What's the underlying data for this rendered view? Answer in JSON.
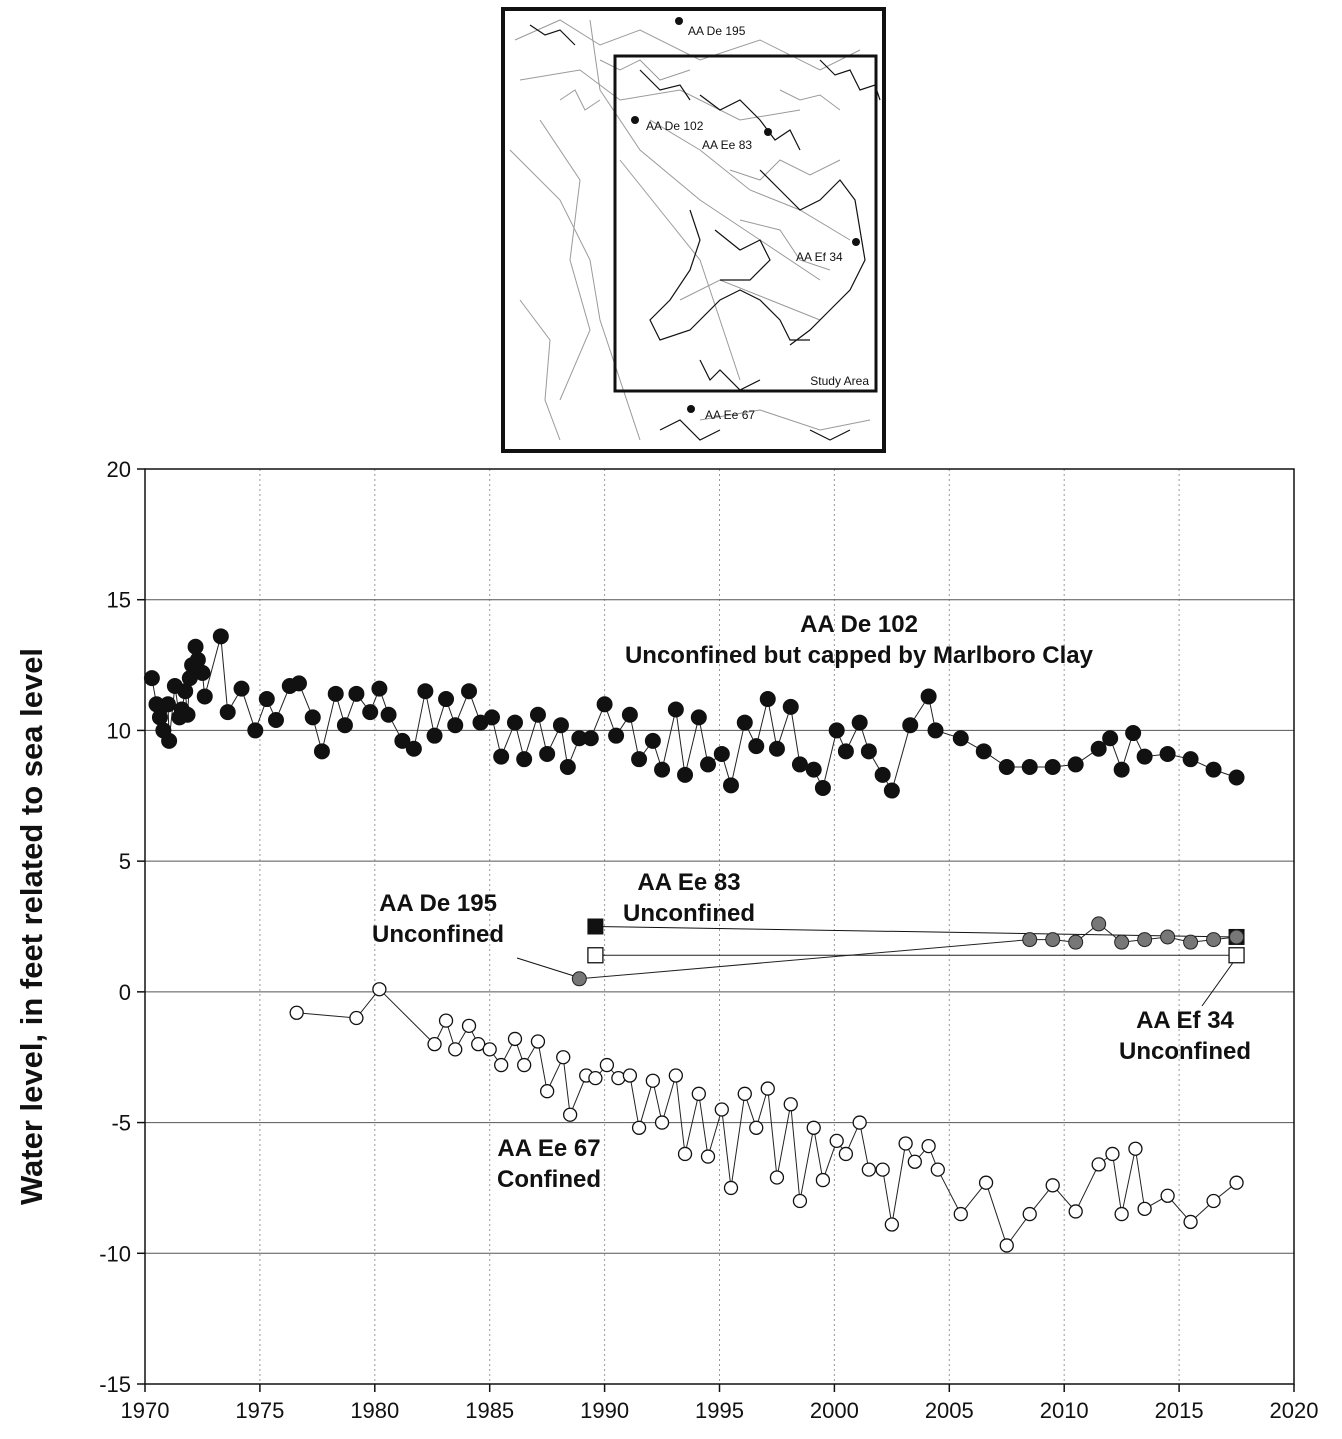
{
  "map": {
    "wells": [
      {
        "id": "AA De 195"
      },
      {
        "id": "AA De 102"
      },
      {
        "id": "AA Ee 83"
      },
      {
        "id": "AA Ef 34"
      },
      {
        "id": "AA Ee 67"
      }
    ],
    "study_area_label": "Study Area"
  },
  "chart_data": {
    "type": "scatter",
    "title": "",
    "xlabel": "",
    "ylabel": "Water level, in feet related to sea level",
    "xlim": [
      1970,
      2020
    ],
    "ylim": [
      -15,
      20
    ],
    "xticks": [
      1970,
      1975,
      1980,
      1985,
      1990,
      1995,
      2000,
      2005,
      2010,
      2015,
      2020
    ],
    "yticks": [
      -15,
      -10,
      -5,
      0,
      5,
      10,
      15,
      20
    ],
    "grid": {
      "horizontal": "solid",
      "vertical": "dotted"
    },
    "series": [
      {
        "name": "AA De 102",
        "marker": "filled-circle",
        "color": "#111111",
        "points": [
          [
            1970.3,
            12.0
          ],
          [
            1970.5,
            11.0
          ],
          [
            1970.65,
            10.5
          ],
          [
            1970.8,
            10.0
          ],
          [
            1971.0,
            11.0
          ],
          [
            1971.05,
            9.6
          ],
          [
            1971.3,
            11.7
          ],
          [
            1971.5,
            10.5
          ],
          [
            1971.6,
            10.8
          ],
          [
            1971.75,
            11.5
          ],
          [
            1971.85,
            10.6
          ],
          [
            1971.95,
            12.0
          ],
          [
            1972.05,
            12.5
          ],
          [
            1972.2,
            13.2
          ],
          [
            1972.3,
            12.7
          ],
          [
            1972.5,
            12.2
          ],
          [
            1972.6,
            11.3
          ],
          [
            1973.3,
            13.6
          ],
          [
            1973.6,
            10.7
          ],
          [
            1974.2,
            11.6
          ],
          [
            1974.8,
            10.0
          ],
          [
            1975.3,
            11.2
          ],
          [
            1975.7,
            10.4
          ],
          [
            1976.3,
            11.7
          ],
          [
            1976.7,
            11.8
          ],
          [
            1977.3,
            10.5
          ],
          [
            1977.7,
            9.2
          ],
          [
            1978.3,
            11.4
          ],
          [
            1978.7,
            10.2
          ],
          [
            1979.2,
            11.4
          ],
          [
            1979.8,
            10.7
          ],
          [
            1980.2,
            11.6
          ],
          [
            1980.6,
            10.6
          ],
          [
            1981.2,
            9.6
          ],
          [
            1981.7,
            9.3
          ],
          [
            1982.2,
            11.5
          ],
          [
            1982.6,
            9.8
          ],
          [
            1983.1,
            11.2
          ],
          [
            1983.5,
            10.2
          ],
          [
            1984.1,
            11.5
          ],
          [
            1984.6,
            10.3
          ],
          [
            1985.1,
            10.5
          ],
          [
            1985.5,
            9.0
          ],
          [
            1986.1,
            10.3
          ],
          [
            1986.5,
            8.9
          ],
          [
            1987.1,
            10.6
          ],
          [
            1987.5,
            9.1
          ],
          [
            1988.1,
            10.2
          ],
          [
            1988.4,
            8.6
          ],
          [
            1988.9,
            9.7
          ],
          [
            1989.4,
            9.7
          ],
          [
            1990.0,
            11.0
          ],
          [
            1990.5,
            9.8
          ],
          [
            1991.1,
            10.6
          ],
          [
            1991.5,
            8.9
          ],
          [
            1992.1,
            9.6
          ],
          [
            1992.5,
            8.5
          ],
          [
            1993.1,
            10.8
          ],
          [
            1993.5,
            8.3
          ],
          [
            1994.1,
            10.5
          ],
          [
            1994.5,
            8.7
          ],
          [
            1995.1,
            9.1
          ],
          [
            1995.5,
            7.9
          ],
          [
            1996.1,
            10.3
          ],
          [
            1996.6,
            9.4
          ],
          [
            1997.1,
            11.2
          ],
          [
            1997.5,
            9.3
          ],
          [
            1998.1,
            10.9
          ],
          [
            1998.5,
            8.7
          ],
          [
            1999.1,
            8.5
          ],
          [
            1999.5,
            7.8
          ],
          [
            2000.1,
            10.0
          ],
          [
            2000.5,
            9.2
          ],
          [
            2001.1,
            10.3
          ],
          [
            2001.5,
            9.2
          ],
          [
            2002.1,
            8.3
          ],
          [
            2002.5,
            7.7
          ],
          [
            2003.3,
            10.2
          ],
          [
            2004.1,
            11.3
          ],
          [
            2004.4,
            10.0
          ],
          [
            2005.5,
            9.7
          ],
          [
            2006.5,
            9.2
          ],
          [
            2007.5,
            8.6
          ],
          [
            2008.5,
            8.6
          ],
          [
            2009.5,
            8.6
          ],
          [
            2010.5,
            8.7
          ],
          [
            2011.5,
            9.3
          ],
          [
            2012.0,
            9.7
          ],
          [
            2012.5,
            8.5
          ],
          [
            2013.0,
            9.9
          ],
          [
            2013.5,
            9.0
          ],
          [
            2014.5,
            9.1
          ],
          [
            2015.5,
            8.9
          ],
          [
            2016.5,
            8.5
          ],
          [
            2017.5,
            8.2
          ]
        ]
      },
      {
        "name": "AA Ee 67",
        "marker": "open-circle",
        "color": "#ffffff",
        "points": [
          [
            1976.6,
            -0.8
          ],
          [
            1979.2,
            -1.0
          ],
          [
            1980.2,
            0.1
          ],
          [
            1982.6,
            -2.0
          ],
          [
            1983.1,
            -1.1
          ],
          [
            1983.5,
            -2.2
          ],
          [
            1984.1,
            -1.3
          ],
          [
            1984.5,
            -2.0
          ],
          [
            1985.0,
            -2.2
          ],
          [
            1985.5,
            -2.8
          ],
          [
            1986.1,
            -1.8
          ],
          [
            1986.5,
            -2.8
          ],
          [
            1987.1,
            -1.9
          ],
          [
            1987.5,
            -3.8
          ],
          [
            1988.2,
            -2.5
          ],
          [
            1988.5,
            -4.7
          ],
          [
            1989.2,
            -3.2
          ],
          [
            1989.6,
            -3.3
          ],
          [
            1990.1,
            -2.8
          ],
          [
            1990.6,
            -3.3
          ],
          [
            1991.1,
            -3.2
          ],
          [
            1991.5,
            -5.2
          ],
          [
            1992.1,
            -3.4
          ],
          [
            1992.5,
            -5.0
          ],
          [
            1993.1,
            -3.2
          ],
          [
            1993.5,
            -6.2
          ],
          [
            1994.1,
            -3.9
          ],
          [
            1994.5,
            -6.3
          ],
          [
            1995.1,
            -4.5
          ],
          [
            1995.5,
            -7.5
          ],
          [
            1996.1,
            -3.9
          ],
          [
            1996.6,
            -5.2
          ],
          [
            1997.1,
            -3.7
          ],
          [
            1997.5,
            -7.1
          ],
          [
            1998.1,
            -4.3
          ],
          [
            1998.5,
            -8.0
          ],
          [
            1999.1,
            -5.2
          ],
          [
            1999.5,
            -7.2
          ],
          [
            2000.1,
            -5.7
          ],
          [
            2000.5,
            -6.2
          ],
          [
            2001.1,
            -5.0
          ],
          [
            2001.5,
            -6.8
          ],
          [
            2002.1,
            -6.8
          ],
          [
            2002.5,
            -8.9
          ],
          [
            2003.1,
            -5.8
          ],
          [
            2003.5,
            -6.5
          ],
          [
            2004.1,
            -5.9
          ],
          [
            2004.5,
            -6.8
          ],
          [
            2005.5,
            -8.5
          ],
          [
            2006.6,
            -7.3
          ],
          [
            2007.5,
            -9.7
          ],
          [
            2008.5,
            -8.5
          ],
          [
            2009.5,
            -7.4
          ],
          [
            2010.5,
            -8.4
          ],
          [
            2011.5,
            -6.6
          ],
          [
            2012.1,
            -6.2
          ],
          [
            2012.5,
            -8.5
          ],
          [
            2013.1,
            -6.0
          ],
          [
            2013.5,
            -8.3
          ],
          [
            2014.5,
            -7.8
          ],
          [
            2015.5,
            -8.8
          ],
          [
            2016.5,
            -8.0
          ],
          [
            2017.5,
            -7.3
          ]
        ]
      },
      {
        "name": "AA De 195",
        "marker": "gray-circle",
        "color": "#777777",
        "points": [
          [
            1988.9,
            0.5
          ],
          [
            2008.5,
            2.0
          ],
          [
            2009.5,
            2.0
          ],
          [
            2010.5,
            1.9
          ],
          [
            2011.5,
            2.6
          ],
          [
            2012.5,
            1.9
          ],
          [
            2013.5,
            2.0
          ],
          [
            2014.5,
            2.1
          ],
          [
            2015.5,
            1.9
          ],
          [
            2016.5,
            2.0
          ],
          [
            2017.5,
            2.1
          ]
        ]
      },
      {
        "name": "AA Ee 83",
        "marker": "filled-square",
        "color": "#111111",
        "points": [
          [
            1989.6,
            2.5
          ],
          [
            2017.5,
            2.1
          ]
        ]
      },
      {
        "name": "AA Ef 34",
        "marker": "open-square",
        "color": "#ffffff",
        "points": [
          [
            1989.6,
            1.4
          ],
          [
            2017.5,
            1.4
          ]
        ]
      }
    ],
    "annotations": [
      {
        "lines": [
          "AA De 102",
          "Unconfined but capped by Marlboro Clay"
        ],
        "at": [
          2002.0,
          14.0
        ]
      },
      {
        "lines": [
          "AA Ee 83",
          "Unconfined"
        ],
        "at": [
          1993.8,
          3.3
        ]
      },
      {
        "lines": [
          "AA De 195",
          "Unconfined"
        ],
        "at": [
          1988.0,
          2.2
        ]
      },
      {
        "lines": [
          "AA Ef 34",
          "Unconfined"
        ],
        "at": [
          2014.8,
          -1.7
        ]
      },
      {
        "lines": [
          "AA Ee 67",
          "Confined"
        ],
        "at": [
          1987.5,
          -7.2
        ]
      }
    ]
  }
}
